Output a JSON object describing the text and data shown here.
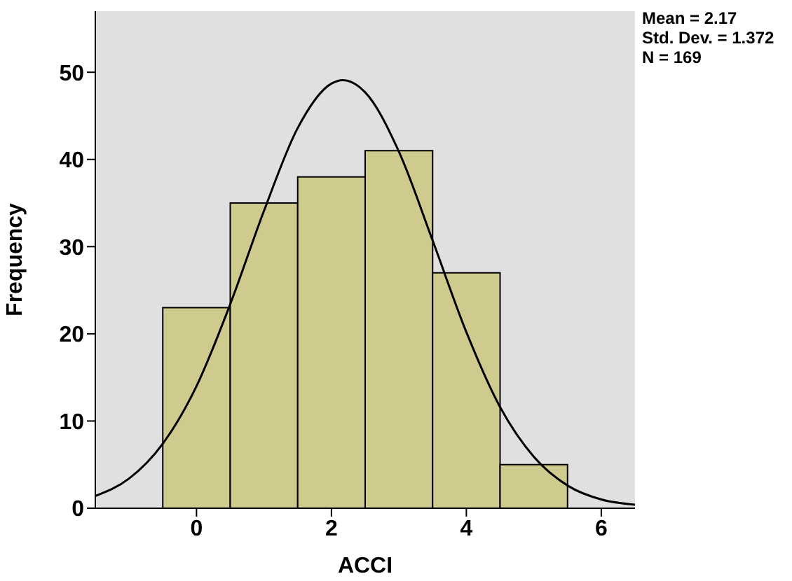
{
  "chart_data": {
    "type": "histogram",
    "xlabel": "ACCI",
    "ylabel": "Frequency",
    "bins": [
      -0.5,
      0.5,
      1.5,
      2.5,
      3.5,
      4.5,
      5.5
    ],
    "values": [
      23,
      35,
      38,
      41,
      27,
      5
    ],
    "color": "#cfcb8f",
    "xlim": [
      -1.5,
      6.5
    ],
    "xticks": [
      0,
      2,
      4,
      6
    ],
    "ylim": [
      0,
      57
    ],
    "yticks": [
      0,
      10,
      20,
      30,
      40,
      50
    ],
    "grid": false,
    "series": [
      {
        "type": "line",
        "color": "#000000",
        "x": [
          -1.5,
          -1,
          -0.5,
          0,
          0.5,
          1,
          1.5,
          2,
          2.17,
          2.5,
          3,
          3.5,
          4,
          4.5,
          5,
          5.5,
          6,
          6.5
        ],
        "values": [
          1.4,
          3.4,
          7.4,
          14,
          23.4,
          34.1,
          43.6,
          48.7,
          49.1,
          47.7,
          40.9,
          30.7,
          20.2,
          11.6,
          5.9,
          2.6,
          1,
          0.4
        ]
      }
    ],
    "annotations": [
      "Mean = 2.17",
      "Std. Dev. = 1.372",
      "N = 169"
    ]
  }
}
